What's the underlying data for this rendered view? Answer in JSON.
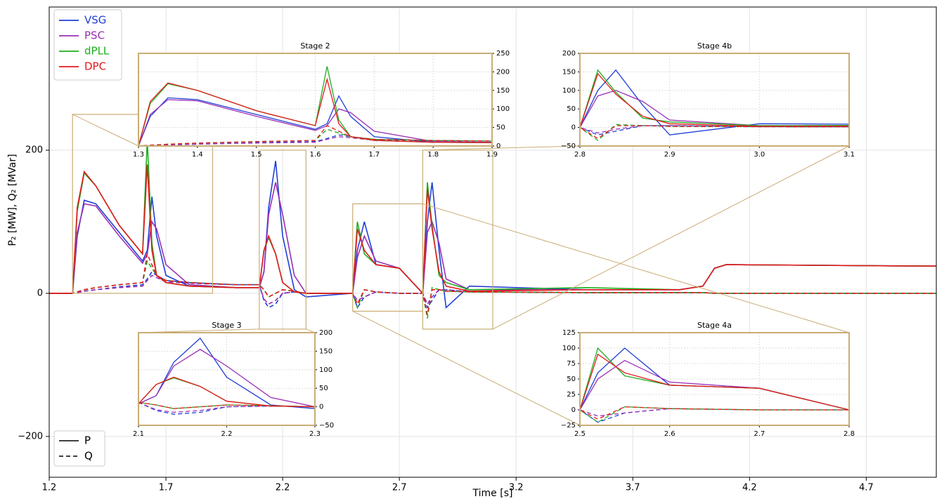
{
  "chart_data": {
    "type": "line",
    "xlabel": "Time [s]",
    "ylabel": "P₂ [MW], Q₂ [MVar]",
    "x": [
      1.2,
      1.3,
      1.32,
      1.35,
      1.4,
      1.5,
      1.6,
      1.62,
      1.64,
      1.66,
      1.7,
      1.8,
      2.0,
      2.1,
      2.12,
      2.14,
      2.17,
      2.2,
      2.25,
      2.3,
      2.5,
      2.52,
      2.55,
      2.6,
      2.7,
      2.8,
      2.82,
      2.84,
      2.87,
      2.9,
      3.0,
      3.5,
      3.9,
      4.0,
      4.05,
      4.1,
      5.0
    ],
    "series": [
      {
        "name": "VSG",
        "color": "#1f3fd6",
        "values": [
          0,
          0,
          80,
          130,
          125,
          85,
          45,
          60,
          135,
          80,
          25,
          10,
          8,
          8,
          30,
          120,
          185,
          80,
          5,
          -5,
          0,
          60,
          100,
          40,
          35,
          0,
          100,
          155,
          60,
          -20,
          10,
          5,
          5,
          10,
          35,
          40,
          38
        ],
        "q_values": [
          0,
          0,
          1,
          3,
          5,
          9,
          12,
          20,
          30,
          25,
          18,
          15,
          12,
          12,
          -10,
          -20,
          -15,
          0,
          2,
          0,
          0,
          -20,
          -5,
          2,
          0,
          0,
          -20,
          -10,
          5,
          5,
          2,
          1,
          1,
          1,
          0,
          0,
          0
        ]
      },
      {
        "name": "PSC",
        "color": "#9b2fb5",
        "values": [
          0,
          0,
          85,
          125,
          122,
          80,
          42,
          55,
          100,
          90,
          40,
          12,
          8,
          8,
          30,
          110,
          155,
          110,
          25,
          0,
          0,
          50,
          80,
          45,
          35,
          0,
          85,
          100,
          70,
          20,
          5,
          5,
          5,
          10,
          35,
          40,
          38
        ],
        "q_values": [
          0,
          0,
          1,
          3,
          5,
          8,
          10,
          18,
          25,
          22,
          16,
          14,
          12,
          12,
          -8,
          -15,
          -10,
          0,
          2,
          0,
          0,
          -10,
          -5,
          2,
          0,
          0,
          -15,
          -5,
          5,
          5,
          2,
          1,
          1,
          1,
          0,
          0,
          0
        ]
      },
      {
        "name": "dPLL",
        "color": "#1fae1f",
        "values": [
          0,
          0,
          115,
          168,
          150,
          95,
          55,
          215,
          70,
          25,
          15,
          10,
          8,
          8,
          60,
          78,
          55,
          15,
          2,
          0,
          0,
          100,
          55,
          40,
          35,
          0,
          155,
          95,
          25,
          15,
          5,
          8,
          5,
          10,
          35,
          40,
          38
        ],
        "q_values": [
          0,
          0,
          2,
          5,
          8,
          12,
          15,
          45,
          35,
          25,
          18,
          15,
          12,
          12,
          5,
          -5,
          0,
          5,
          3,
          0,
          0,
          -20,
          5,
          2,
          0,
          0,
          -35,
          8,
          5,
          3,
          2,
          1,
          1,
          1,
          0,
          0,
          0
        ]
      },
      {
        "name": "DPC",
        "color": "#e31a1c",
        "values": [
          0,
          0,
          120,
          170,
          150,
          95,
          55,
          180,
          60,
          25,
          15,
          10,
          8,
          8,
          60,
          80,
          55,
          15,
          2,
          0,
          0,
          90,
          60,
          40,
          35,
          0,
          145,
          90,
          30,
          10,
          3,
          5,
          5,
          10,
          35,
          40,
          38
        ],
        "q_values": [
          0,
          0,
          2,
          5,
          8,
          12,
          15,
          55,
          40,
          25,
          18,
          15,
          12,
          12,
          5,
          -5,
          0,
          5,
          3,
          0,
          0,
          -15,
          5,
          2,
          0,
          0,
          -30,
          5,
          5,
          3,
          2,
          1,
          1,
          1,
          0,
          0,
          0
        ]
      }
    ],
    "line_styles": [
      {
        "name": "P",
        "dash": "solid"
      },
      {
        "name": "Q",
        "dash": "dashed"
      }
    ],
    "xlim": [
      1.2,
      5.0
    ],
    "ylim": [
      -257,
      400
    ],
    "xticks": [
      1.2,
      1.7,
      2.2,
      2.7,
      3.2,
      3.7,
      4.2,
      4.7
    ],
    "yticks": [
      {
        "value": -200,
        "label": "−200"
      },
      0,
      200
    ],
    "grid": true,
    "insets": [
      {
        "title": "Stage 2",
        "xlim": [
          1.3,
          1.9
        ],
        "ylim": [
          0,
          250
        ],
        "yaxis_side": "right",
        "xticks": [
          1.3,
          1.4,
          1.5,
          1.6,
          1.7,
          1.8,
          1.9
        ],
        "yticks": [
          0,
          50,
          100,
          150,
          200,
          250
        ]
      },
      {
        "title": "Stage 3",
        "xlim": [
          2.1,
          2.3
        ],
        "ylim": [
          -50,
          200
        ],
        "yaxis_side": "right",
        "xticks": [
          2.1,
          2.2,
          2.3
        ],
        "yticks": [
          {
            "value": -50,
            "label": "−50"
          },
          0,
          50,
          100,
          150,
          200
        ]
      },
      {
        "title": "Stage 4a",
        "xlim": [
          2.5,
          2.8
        ],
        "ylim": [
          -25,
          125
        ],
        "yaxis_side": "left",
        "xticks": [
          2.5,
          2.6,
          2.7,
          2.8
        ],
        "yticks": [
          {
            "value": -25,
            "label": "−25"
          },
          0,
          25,
          50,
          75,
          100,
          125
        ]
      },
      {
        "title": "Stage 4b",
        "xlim": [
          2.8,
          3.1
        ],
        "ylim": [
          -50,
          200
        ],
        "yaxis_side": "left",
        "xticks": [
          2.8,
          2.9,
          {
            "value": 3.0,
            "label": "3.0"
          },
          3.1
        ],
        "yticks": [
          {
            "value": -50,
            "label": "−50"
          },
          0,
          50,
          100,
          150,
          200
        ]
      }
    ]
  }
}
